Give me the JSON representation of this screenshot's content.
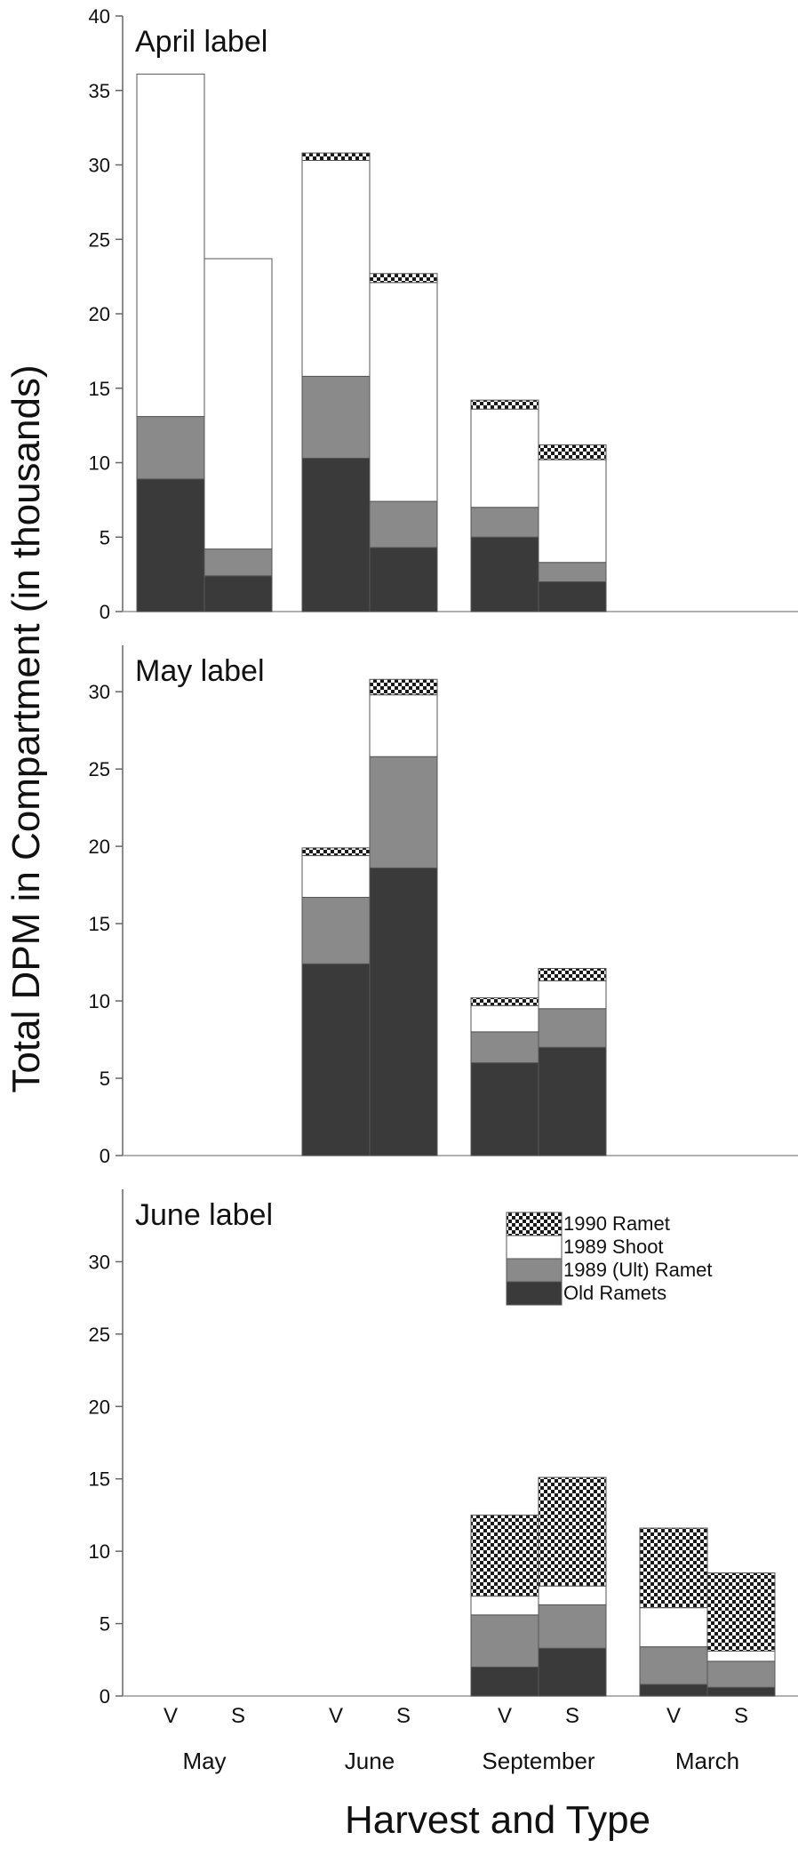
{
  "chart_data": {
    "type": "bar",
    "stacked": true,
    "ylabel": "Total DPM in Compartment (in thousands)",
    "xlabel": "Harvest and Type",
    "groups": [
      "May",
      "June",
      "September",
      "March"
    ],
    "bar_types": [
      "V",
      "S"
    ],
    "colors": {
      "Old Ramets": "#3a3a3a",
      "1989 (Ult) Ramet": "#8a8a8a",
      "1989 Shoot": "#ffffff",
      "1990 Ramet": "#cccccc"
    },
    "legend": {
      "placement": "upper-right of bottom panel",
      "entries": [
        "1990 Ramet",
        "1989 Shoot",
        "1989 (Ult) Ramet",
        "Old Ramets"
      ]
    },
    "panels": [
      {
        "label": "April label",
        "ylim": [
          0,
          40
        ],
        "yticks": [
          0,
          5,
          10,
          15,
          20,
          25,
          30,
          35,
          40
        ],
        "bars": [
          {
            "group": "May",
            "type": "V",
            "Old Ramets": 8.9,
            "1989 (Ult) Ramet": 4.2,
            "1989 Shoot": 23.0,
            "1990 Ramet": 0
          },
          {
            "group": "May",
            "type": "S",
            "Old Ramets": 2.4,
            "1989 (Ult) Ramet": 1.8,
            "1989 Shoot": 19.5,
            "1990 Ramet": 0
          },
          {
            "group": "June",
            "type": "V",
            "Old Ramets": 10.3,
            "1989 (Ult) Ramet": 5.5,
            "1989 Shoot": 14.5,
            "1990 Ramet": 0.5
          },
          {
            "group": "June",
            "type": "S",
            "Old Ramets": 4.3,
            "1989 (Ult) Ramet": 3.1,
            "1989 Shoot": 14.7,
            "1990 Ramet": 0.6
          },
          {
            "group": "September",
            "type": "V",
            "Old Ramets": 5.0,
            "1989 (Ult) Ramet": 2.0,
            "1989 Shoot": 6.6,
            "1990 Ramet": 0.6
          },
          {
            "group": "September",
            "type": "S",
            "Old Ramets": 2.0,
            "1989 (Ult) Ramet": 1.3,
            "1989 Shoot": 6.9,
            "1990 Ramet": 1.0
          }
        ]
      },
      {
        "label": "May label",
        "ylim": [
          0,
          33
        ],
        "yticks": [
          0,
          5,
          10,
          15,
          20,
          25,
          30
        ],
        "bars": [
          {
            "group": "June",
            "type": "V",
            "Old Ramets": 12.4,
            "1989 (Ult) Ramet": 4.3,
            "1989 Shoot": 2.7,
            "1990 Ramet": 0.5
          },
          {
            "group": "June",
            "type": "S",
            "Old Ramets": 18.6,
            "1989 (Ult) Ramet": 7.2,
            "1989 Shoot": 4.0,
            "1990 Ramet": 1.0
          },
          {
            "group": "September",
            "type": "V",
            "Old Ramets": 6.0,
            "1989 (Ult) Ramet": 2.0,
            "1989 Shoot": 1.7,
            "1990 Ramet": 0.5
          },
          {
            "group": "September",
            "type": "S",
            "Old Ramets": 7.0,
            "1989 (Ult) Ramet": 2.5,
            "1989 Shoot": 1.8,
            "1990 Ramet": 0.8
          }
        ]
      },
      {
        "label": "June label",
        "ylim": [
          0,
          35
        ],
        "yticks": [
          0,
          5,
          10,
          15,
          20,
          25,
          30
        ],
        "bars": [
          {
            "group": "September",
            "type": "V",
            "Old Ramets": 2.0,
            "1989 (Ult) Ramet": 3.6,
            "1989 Shoot": 1.3,
            "1990 Ramet": 5.6
          },
          {
            "group": "September",
            "type": "S",
            "Old Ramets": 3.3,
            "1989 (Ult) Ramet": 3.0,
            "1989 Shoot": 1.3,
            "1990 Ramet": 7.5
          },
          {
            "group": "March",
            "type": "V",
            "Old Ramets": 0.8,
            "1989 (Ult) Ramet": 2.6,
            "1989 Shoot": 2.7,
            "1990 Ramet": 5.5
          },
          {
            "group": "March",
            "type": "S",
            "Old Ramets": 0.6,
            "1989 (Ult) Ramet": 1.8,
            "1989 Shoot": 0.7,
            "1990 Ramet": 5.4
          }
        ]
      }
    ]
  }
}
